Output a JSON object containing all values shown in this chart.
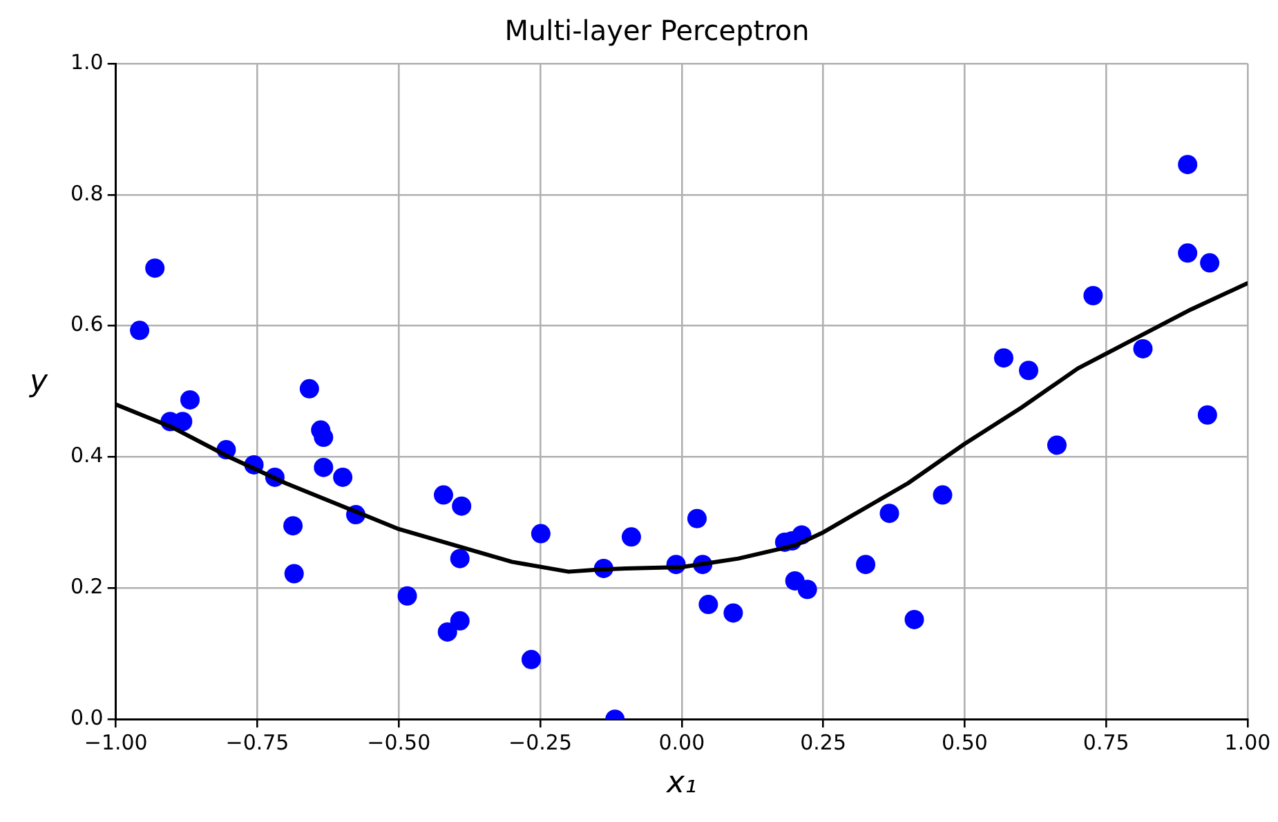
{
  "chart_data": {
    "type": "scatter",
    "title": "Multi-layer Perceptron",
    "xlabel": "x₁",
    "ylabel": "y",
    "xlim": [
      -1,
      1
    ],
    "xticks": [
      {
        "value": -1,
        "label": "−1.00"
      },
      {
        "value": -0.75,
        "label": "−0.75"
      },
      {
        "value": -0.5,
        "label": "−0.50"
      },
      {
        "value": -0.25,
        "label": "−0.25"
      },
      {
        "value": 0,
        "label": "0.00"
      },
      {
        "value": 0.25,
        "label": "0.25"
      },
      {
        "value": 0.5,
        "label": "0.50"
      },
      {
        "value": 0.75,
        "label": "0.75"
      },
      {
        "value": 1,
        "label": "1.00"
      }
    ],
    "ylim": [
      0,
      1
    ],
    "yticks": [
      {
        "value": 0,
        "label": "0.0"
      },
      {
        "value": 0.2,
        "label": "0.2"
      },
      {
        "value": 0.4,
        "label": "0.4"
      },
      {
        "value": 0.6,
        "label": "0.6"
      },
      {
        "value": 0.8,
        "label": "0.8"
      },
      {
        "value": 1,
        "label": "1.0"
      }
    ],
    "grid": true,
    "marker": "circle",
    "series": [
      {
        "color": "#0000ff",
        "x": [
          -0.958,
          -0.931,
          -0.904,
          -0.882,
          -0.869,
          -0.805,
          -0.756,
          -0.719,
          -0.687,
          -0.685,
          -0.658,
          -0.638,
          -0.633,
          -0.633,
          -0.599,
          -0.576,
          -0.485,
          -0.421,
          -0.414,
          -0.389,
          -0.392,
          -0.392,
          -0.266,
          -0.249,
          -0.138,
          -0.118,
          -0.089,
          -0.01,
          0.027,
          0.037,
          0.047,
          0.091,
          0.182,
          0.195,
          0.2,
          0.212,
          0.222,
          0.325,
          0.367,
          0.411,
          0.461,
          0.569,
          0.613,
          0.663,
          0.727,
          0.815,
          0.894,
          0.894,
          0.933,
          0.929
        ],
        "values": [
          0.593,
          0.688,
          0.454,
          0.454,
          0.487,
          0.411,
          0.388,
          0.369,
          0.295,
          0.222,
          0.504,
          0.441,
          0.43,
          0.384,
          0.369,
          0.312,
          0.188,
          0.342,
          0.133,
          0.325,
          0.245,
          0.15,
          0.091,
          0.283,
          0.23,
          0.0,
          0.278,
          0.236,
          0.306,
          0.236,
          0.175,
          0.162,
          0.27,
          0.272,
          0.211,
          0.281,
          0.198,
          0.236,
          0.314,
          0.152,
          0.342,
          0.551,
          0.532,
          0.418,
          0.646,
          0.565,
          0.846,
          0.711,
          0.696,
          0.464
        ]
      },
      {
        "type": "line",
        "color": "#000000",
        "marker": "none",
        "x": [
          -1,
          -0.9,
          -0.8,
          -0.7,
          -0.6,
          -0.5,
          -0.4,
          -0.3,
          -0.2,
          -0.15,
          -0.1,
          0,
          0.1,
          0.2,
          0.25,
          0.3,
          0.4,
          0.5,
          0.6,
          0.7,
          0.8,
          0.9,
          1
        ],
        "values": [
          0.48,
          0.445,
          0.4,
          0.36,
          0.325,
          0.29,
          0.265,
          0.24,
          0.225,
          0.228,
          0.23,
          0.232,
          0.245,
          0.265,
          0.285,
          0.31,
          0.36,
          0.42,
          0.475,
          0.535,
          0.58,
          0.625,
          0.665
        ]
      }
    ]
  }
}
